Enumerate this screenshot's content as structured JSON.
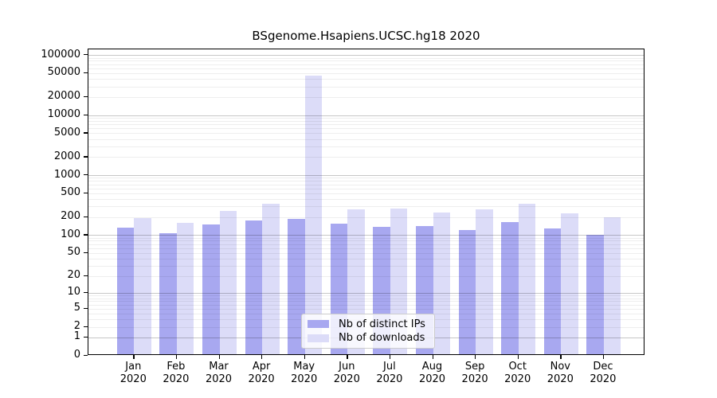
{
  "chart_data": {
    "type": "bar",
    "title": "BSgenome.Hsapiens.UCSC.hg18 2020",
    "year_label": "2020",
    "categories": [
      "Jan",
      "Feb",
      "Mar",
      "Apr",
      "May",
      "Jun",
      "Jul",
      "Aug",
      "Sep",
      "Oct",
      "Nov",
      "Dec"
    ],
    "series": [
      {
        "name": "Nb of distinct IPs",
        "color": "#a8a8f0",
        "values": [
          123,
          100,
          142,
          166,
          175,
          145,
          130,
          132,
          113,
          157,
          121,
          94
        ]
      },
      {
        "name": "Nb of downloads",
        "color": "#dcdcf8",
        "values": [
          178,
          150,
          236,
          310,
          43000,
          255,
          258,
          222,
          255,
          310,
          220,
          188
        ]
      }
    ],
    "y_axis": {
      "scale": "log10(1+x)",
      "tick_values": [
        0,
        1,
        2,
        5,
        10,
        20,
        50,
        100,
        200,
        500,
        1000,
        2000,
        5000,
        10000,
        20000,
        50000,
        100000
      ],
      "top_value": 115000
    },
    "x_axis": {
      "tick_label_line2": "2020"
    },
    "legend": {
      "position": "inside-bottom-center"
    },
    "grid": {
      "on": true,
      "minor_color": "#ebebeb",
      "major_color": "#c4c4c4"
    },
    "colors": {
      "background": "#ffffff",
      "spine": "#000000"
    }
  }
}
